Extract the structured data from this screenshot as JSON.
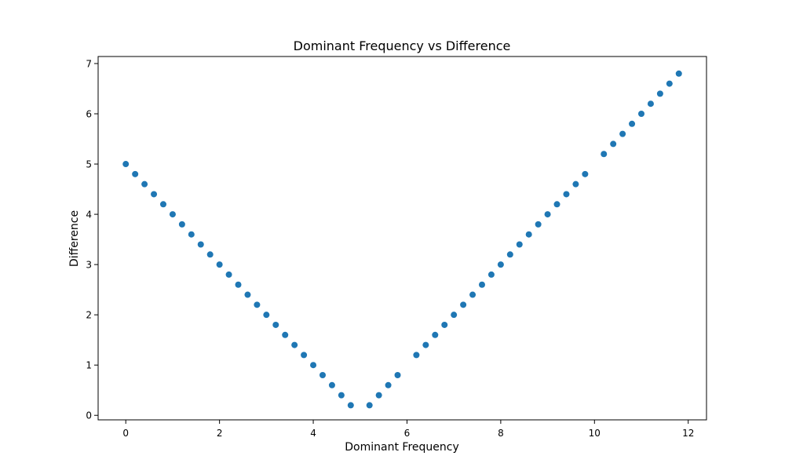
{
  "chart_data": {
    "type": "scatter",
    "title": "Dominant Frequency vs Difference",
    "xlabel": "Dominant Frequency",
    "ylabel": "Difference",
    "xlim": [
      -0.59,
      12.39
    ],
    "ylim": [
      -0.09,
      7.14
    ],
    "xticks": [
      0,
      2,
      4,
      6,
      8,
      10,
      12
    ],
    "yticks": [
      0,
      1,
      2,
      3,
      4,
      5,
      6,
      7
    ],
    "grid": false,
    "marker_color": "#1f77b4",
    "series": [
      {
        "x": [
          0.0,
          0.2,
          0.4,
          0.6,
          0.8,
          1.0,
          1.2,
          1.4,
          1.6,
          1.8,
          2.0,
          2.2,
          2.4,
          2.6,
          2.8,
          3.0,
          3.2,
          3.4,
          3.6,
          3.8,
          4.0,
          4.2,
          4.4,
          4.6,
          4.8,
          5.2,
          5.4,
          5.6,
          5.8,
          6.2,
          6.4,
          6.6,
          6.8,
          7.0,
          7.2,
          7.4,
          7.6,
          7.8,
          8.0,
          8.2,
          8.4,
          8.6,
          8.8,
          9.0,
          9.2,
          9.4,
          9.6,
          9.8,
          10.2,
          10.4,
          10.6,
          10.8,
          11.0,
          11.2,
          11.4,
          11.6,
          11.8
        ],
        "y": [
          5.0,
          4.8,
          4.6,
          4.4,
          4.2,
          4.0,
          3.8,
          3.6,
          3.4,
          3.2,
          3.0,
          2.8,
          2.6,
          2.4,
          2.2,
          2.0,
          1.8,
          1.6,
          1.4,
          1.2,
          1.0,
          0.8,
          0.6,
          0.4,
          0.2,
          0.2,
          0.4,
          0.6,
          0.8,
          1.2,
          1.4,
          1.6,
          1.8,
          2.0,
          2.2,
          2.4,
          2.6,
          2.8,
          3.0,
          3.2,
          3.4,
          3.6,
          3.8,
          4.0,
          4.2,
          4.4,
          4.6,
          4.8,
          5.2,
          5.4,
          5.6,
          5.8,
          6.0,
          6.2,
          6.4,
          6.6,
          6.8
        ]
      }
    ]
  }
}
